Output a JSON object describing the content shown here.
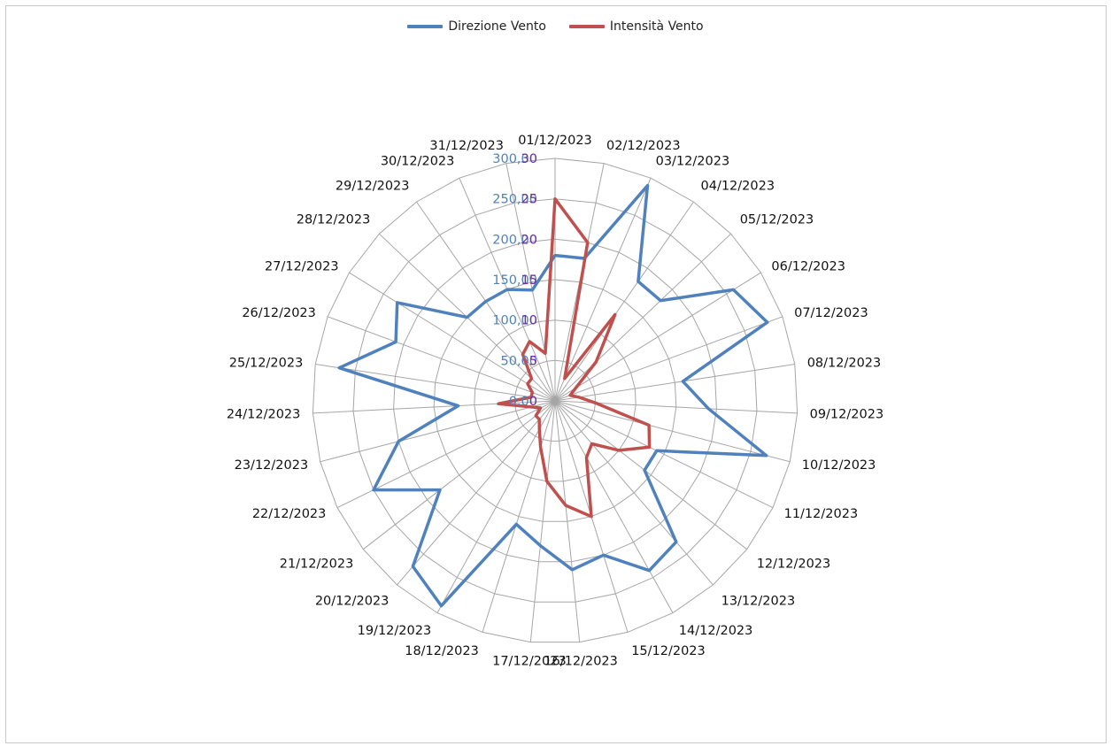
{
  "chart_data": {
    "type": "radar",
    "title": "",
    "categories": [
      "01/12/2023",
      "02/12/2023",
      "03/12/2023",
      "04/12/2023",
      "05/12/2023",
      "06/12/2023",
      "07/12/2023",
      "08/12/2023",
      "09/12/2023",
      "10/12/2023",
      "11/12/2023",
      "12/12/2023",
      "13/12/2023",
      "14/12/2023",
      "15/12/2023",
      "16/12/2023",
      "17/12/2023",
      "18/12/2023",
      "19/12/2023",
      "20/12/2023",
      "21/12/2023",
      "22/12/2023",
      "23/12/2023",
      "24/12/2023",
      "25/12/2023",
      "26/12/2023",
      "27/12/2023",
      "28/12/2023",
      "29/12/2023",
      "30/12/2023",
      "31/12/2023"
    ],
    "series": [
      {
        "name": "Direzione Vento",
        "color": "#4f81bd",
        "values": [
          180,
          180,
          290,
          180,
          180,
          260,
          280,
          160,
          190,
          270,
          140,
          140,
          230,
          240,
          200,
          210,
          180,
          160,
          290,
          270,
          180,
          250,
          200,
          120,
          270,
          210,
          230,
          150,
          150,
          150,
          140
        ]
      },
      {
        "name": "Intensità Vento",
        "color": "#c0504d",
        "values": [
          25,
          20,
          3,
          13,
          7,
          3,
          2,
          3,
          5,
          12,
          13,
          10,
          7,
          8,
          15,
          13,
          10,
          6,
          4,
          3,
          3,
          2,
          3,
          7,
          3,
          3,
          4,
          4,
          7,
          8,
          6
        ]
      }
    ],
    "primary_axis": {
      "range": [
        0,
        300
      ],
      "ticks": [
        "0,00",
        "50,00",
        "100,00",
        "150,00",
        "200,00",
        "250,00",
        "300,00"
      ],
      "color": "#4f81bd"
    },
    "secondary_axis": {
      "range": [
        0,
        30
      ],
      "ticks": [
        "0",
        "5",
        "10",
        "15",
        "20",
        "25",
        "30"
      ],
      "color": "#7030a0"
    },
    "legend_position": "top",
    "grid": true
  }
}
